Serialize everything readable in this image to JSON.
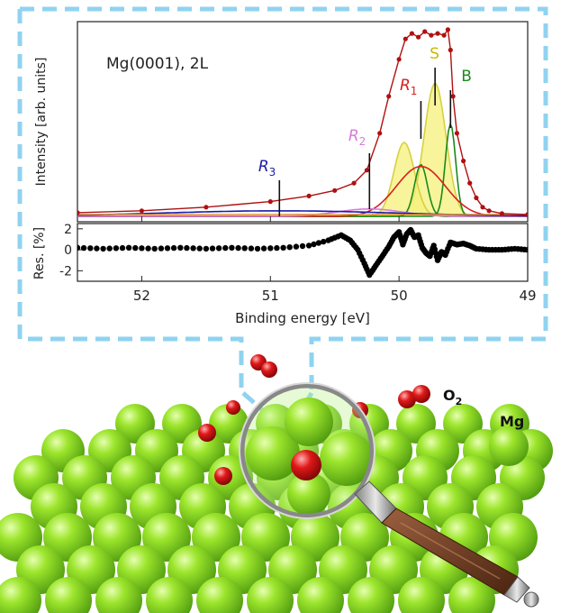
{
  "chart_data": [
    {
      "type": "line",
      "panel": "spectrum",
      "annotation": "Mg(0001), 2L",
      "ylabel": "Intensity [arb. units]",
      "x_direction": "reversed",
      "xlim": [
        52.5,
        49.0
      ],
      "x_ticks": [
        "52",
        "51",
        "50",
        "49"
      ],
      "peak_labels": [
        {
          "label": "R",
          "sub": "3",
          "color": "#1a1aa6",
          "x": 50.93
        },
        {
          "label": "R",
          "sub": "2",
          "color": "#d97ad9",
          "x": 50.23
        },
        {
          "label": "R",
          "sub": "1",
          "color": "#d42020",
          "x": 49.83
        },
        {
          "label": "S",
          "sub": "",
          "color": "#c9b800",
          "x": 49.72
        },
        {
          "label": "B",
          "sub": "",
          "color": "#1a8a1a",
          "x": 49.6
        }
      ],
      "series": [
        {
          "name": "data",
          "color": "#b01010",
          "style": "markers+line",
          "x": [
            52.5,
            52.0,
            51.5,
            51.0,
            50.7,
            50.5,
            50.35,
            50.25,
            50.15,
            50.08,
            50.0,
            49.95,
            49.9,
            49.85,
            49.8,
            49.75,
            49.7,
            49.65,
            49.62,
            49.6,
            49.58,
            49.55,
            49.5,
            49.45,
            49.4,
            49.35,
            49.3,
            49.2,
            49.0
          ],
          "y": [
            0.02,
            0.03,
            0.05,
            0.08,
            0.11,
            0.14,
            0.18,
            0.25,
            0.45,
            0.65,
            0.85,
            0.96,
            0.99,
            0.97,
            1.0,
            0.98,
            0.99,
            0.98,
            1.01,
            0.9,
            0.65,
            0.45,
            0.3,
            0.18,
            0.1,
            0.05,
            0.03,
            0.015,
            0.01
          ]
        },
        {
          "name": "S",
          "color": "#d8d040",
          "fill": "#f4f07a",
          "center": 49.72,
          "amp": 0.72,
          "width": 0.085
        },
        {
          "name": "S-shoulder",
          "color": "#d8d040",
          "fill": "#f4f07a",
          "center": 49.96,
          "amp": 0.4,
          "width": 0.08
        },
        {
          "name": "B",
          "color": "#1a8a1a",
          "center": 49.6,
          "amp": 0.5,
          "width": 0.04
        },
        {
          "name": "B-secondary",
          "color": "#1a8a1a",
          "center": 49.83,
          "amp": 0.28,
          "width": 0.05
        },
        {
          "name": "R1",
          "color": "#d42020",
          "center": 49.83,
          "amp": 0.27,
          "width": 0.19
        },
        {
          "name": "R2",
          "color": "#d97ad9",
          "center": 50.23,
          "amp": 0.04,
          "width": 0.25
        },
        {
          "name": "R3",
          "color": "#1a1aa6",
          "center": 50.93,
          "amp": 0.03,
          "width": 0.9
        },
        {
          "name": "background",
          "color": "#e08a2a",
          "level": 0.01
        }
      ]
    },
    {
      "type": "scatter",
      "panel": "residuals",
      "ylabel": "Res. [%]",
      "xlabel": "Binding energy [eV]",
      "xlim": [
        52.5,
        49.0
      ],
      "ylim": [
        -3,
        2.5
      ],
      "y_ticks": [
        "2",
        "0",
        "-2"
      ],
      "x_ticks": [
        "52",
        "51",
        "50",
        "49"
      ],
      "series": [
        {
          "name": "residuals",
          "color": "#000000",
          "x": [
            52.5,
            52.3,
            52.1,
            51.9,
            51.7,
            51.5,
            51.3,
            51.1,
            50.9,
            50.7,
            50.55,
            50.45,
            50.38,
            50.32,
            50.27,
            50.23,
            50.18,
            50.13,
            50.08,
            50.04,
            50.0,
            49.97,
            49.94,
            49.91,
            49.88,
            49.85,
            49.82,
            49.79,
            49.76,
            49.73,
            49.7,
            49.67,
            49.64,
            49.6,
            49.55,
            49.5,
            49.45,
            49.4,
            49.3,
            49.2,
            49.1,
            49.0
          ],
          "y": [
            0.2,
            0.1,
            0.2,
            0.1,
            0.2,
            0.1,
            0.2,
            0.1,
            0.2,
            0.4,
            0.9,
            1.4,
            0.9,
            0.0,
            -1.3,
            -2.4,
            -1.5,
            -0.6,
            0.3,
            1.2,
            1.7,
            0.5,
            1.5,
            1.9,
            1.2,
            1.4,
            0.2,
            -0.3,
            -0.6,
            0.4,
            -1.0,
            -0.2,
            -0.5,
            0.7,
            0.5,
            0.6,
            0.4,
            0.1,
            0.0,
            0.0,
            0.1,
            0.0
          ]
        }
      ]
    }
  ],
  "illustration": {
    "labels": {
      "oxygen_base": "O",
      "oxygen_sub": "2",
      "magnesium": "Mg"
    },
    "colors": {
      "frame": "#8fd3f0",
      "magnesium": "#7ed421",
      "oxygen": "#e01818",
      "handle": "#6b3a20"
    }
  }
}
